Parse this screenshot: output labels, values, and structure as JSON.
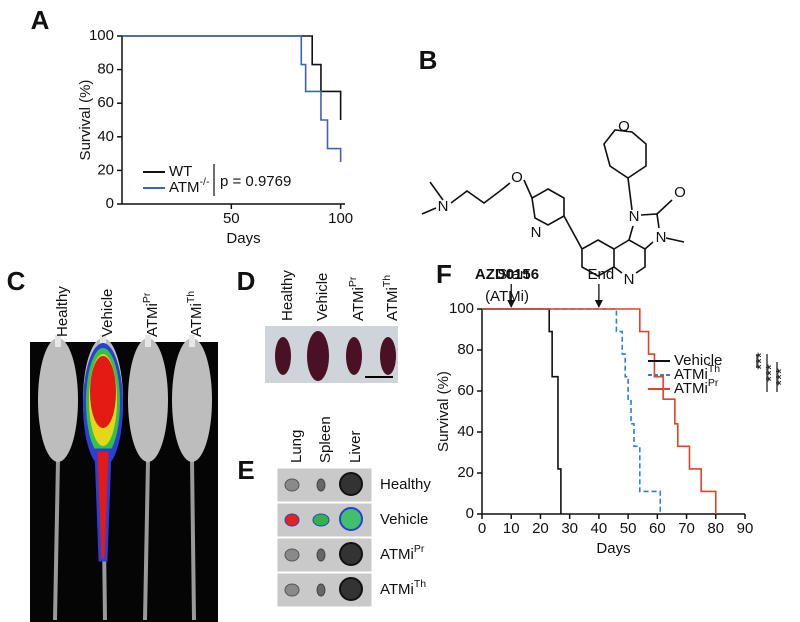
{
  "panel_labels": [
    "A",
    "B",
    "C",
    "D",
    "E",
    "F"
  ],
  "panels": {
    "B": {
      "compound": "AZD0156",
      "subtitle": "(ATMi)",
      "atoms": [
        "N",
        "O",
        "N",
        "O",
        "N",
        "O",
        "N",
        "N"
      ]
    },
    "C": {
      "groups": [
        {
          "text": "Healthy"
        },
        {
          "text": "Vehicle"
        },
        {
          "text": "ATMi",
          "sup": "Pr"
        },
        {
          "text": "ATMi",
          "sup": "Th"
        }
      ]
    },
    "D": {
      "groups": [
        {
          "text": "Healthy"
        },
        {
          "text": "Vehicle"
        },
        {
          "text": "ATMi",
          "sup": "Pr"
        },
        {
          "text": "ATMi",
          "sup": "Th"
        }
      ]
    },
    "E": {
      "organs": [
        "Lung",
        "Spleen",
        "Liver"
      ],
      "groups": [
        {
          "text": "Healthy"
        },
        {
          "text": "Vehicle"
        },
        {
          "text": "ATMi",
          "sup": "Pr"
        },
        {
          "text": "ATMi",
          "sup": "Th"
        }
      ]
    }
  },
  "chart_data": [
    {
      "type": "step",
      "xlabel": "Days",
      "ylabel": "Survival (%)",
      "xlim": [
        0,
        102
      ],
      "xticks": [
        50,
        100
      ],
      "ylim": [
        0,
        100
      ],
      "yticks": [
        0,
        20,
        40,
        60,
        80,
        100
      ],
      "annotation": "p = 0.9769",
      "series": [
        {
          "name": "WT",
          "color": "#111111",
          "x": [
            0,
            87,
            87,
            91,
            91,
            100,
            100
          ],
          "values": [
            100,
            100,
            83,
            83,
            67,
            67,
            50
          ]
        },
        {
          "name": "ATM",
          "name_sup": "-/-",
          "color": "#3d63b8",
          "x": [
            0,
            82,
            82,
            84,
            84,
            91,
            91,
            94,
            94,
            100,
            100
          ],
          "values": [
            100,
            100,
            83,
            83,
            67,
            67,
            50,
            50,
            33,
            33,
            25
          ]
        }
      ]
    },
    {
      "type": "step",
      "xlabel": "Days",
      "ylabel": "Survival (%)",
      "xlim": [
        0,
        90
      ],
      "xticks": [
        0,
        10,
        20,
        30,
        40,
        50,
        60,
        70,
        80,
        90
      ],
      "ylim": [
        0,
        100
      ],
      "yticks": [
        0,
        20,
        40,
        60,
        80,
        100
      ],
      "markers": [
        {
          "text": "Start",
          "x": 10
        },
        {
          "text": "End",
          "x": 40
        }
      ],
      "significance": [
        "***",
        "***",
        "***"
      ],
      "series": [
        {
          "name": "Vehicle",
          "color": "#111111",
          "dashed": false,
          "x": [
            0,
            23,
            23,
            24,
            24,
            26,
            26,
            27,
            27
          ],
          "values": [
            100,
            100,
            89,
            89,
            67,
            67,
            22,
            22,
            0
          ]
        },
        {
          "name": "ATMi",
          "name_sup": "Th",
          "color": "#2f7fd1",
          "dashed": true,
          "x": [
            0,
            46,
            46,
            48,
            48,
            49,
            49,
            50,
            50,
            51,
            51,
            52,
            52,
            54,
            54,
            61,
            61
          ],
          "values": [
            100,
            100,
            89,
            89,
            78,
            78,
            67,
            67,
            56,
            56,
            44,
            44,
            33,
            33,
            11,
            11,
            0
          ]
        },
        {
          "name": "ATMi",
          "name_sup": "Pr",
          "color": "#e5402a",
          "dashed": false,
          "x": [
            0,
            54,
            54,
            57,
            57,
            59,
            59,
            62,
            62,
            66,
            66,
            67,
            67,
            71,
            71,
            75,
            75,
            80,
            80
          ],
          "values": [
            100,
            100,
            89,
            89,
            78,
            78,
            67,
            67,
            56,
            56,
            44,
            44,
            33,
            33,
            22,
            22,
            11,
            11,
            0
          ]
        }
      ]
    }
  ]
}
